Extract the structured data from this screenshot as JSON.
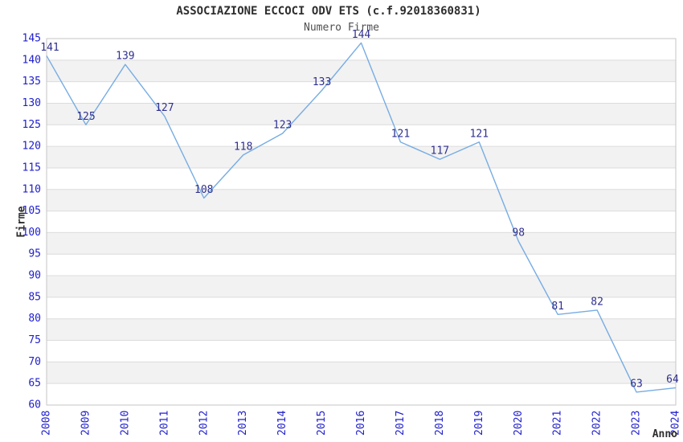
{
  "chart_data": {
    "type": "line",
    "title": "ASSOCIAZIONE ECCOCI ODV ETS (c.f.92018360831)",
    "subtitle": "Numero Firme",
    "xlabel": "Anno",
    "ylabel": "Firme",
    "x": [
      "2008",
      "2009",
      "2010",
      "2011",
      "2012",
      "2013",
      "2014",
      "2015",
      "2016",
      "2017",
      "2018",
      "2019",
      "2020",
      "2021",
      "2022",
      "2023",
      "2024"
    ],
    "values": [
      141,
      125,
      139,
      127,
      108,
      118,
      123,
      133,
      144,
      121,
      117,
      121,
      98,
      81,
      82,
      63,
      64
    ],
    "ylim": [
      60,
      145
    ],
    "ytick_step": 5,
    "grid": "horizontal gridlines with alternating shaded bands",
    "legend_position": "none",
    "colors": {
      "line": "#77ace3",
      "band_shade": "#f2f2f2",
      "grid_line": "#dcdcdc",
      "plot_border": "#c6c6c6",
      "tick_label": "#2020cd",
      "data_label": "#2f2f8f",
      "title_text": "#2e2e2e",
      "subtitle_text": "#4f4f4f"
    }
  }
}
